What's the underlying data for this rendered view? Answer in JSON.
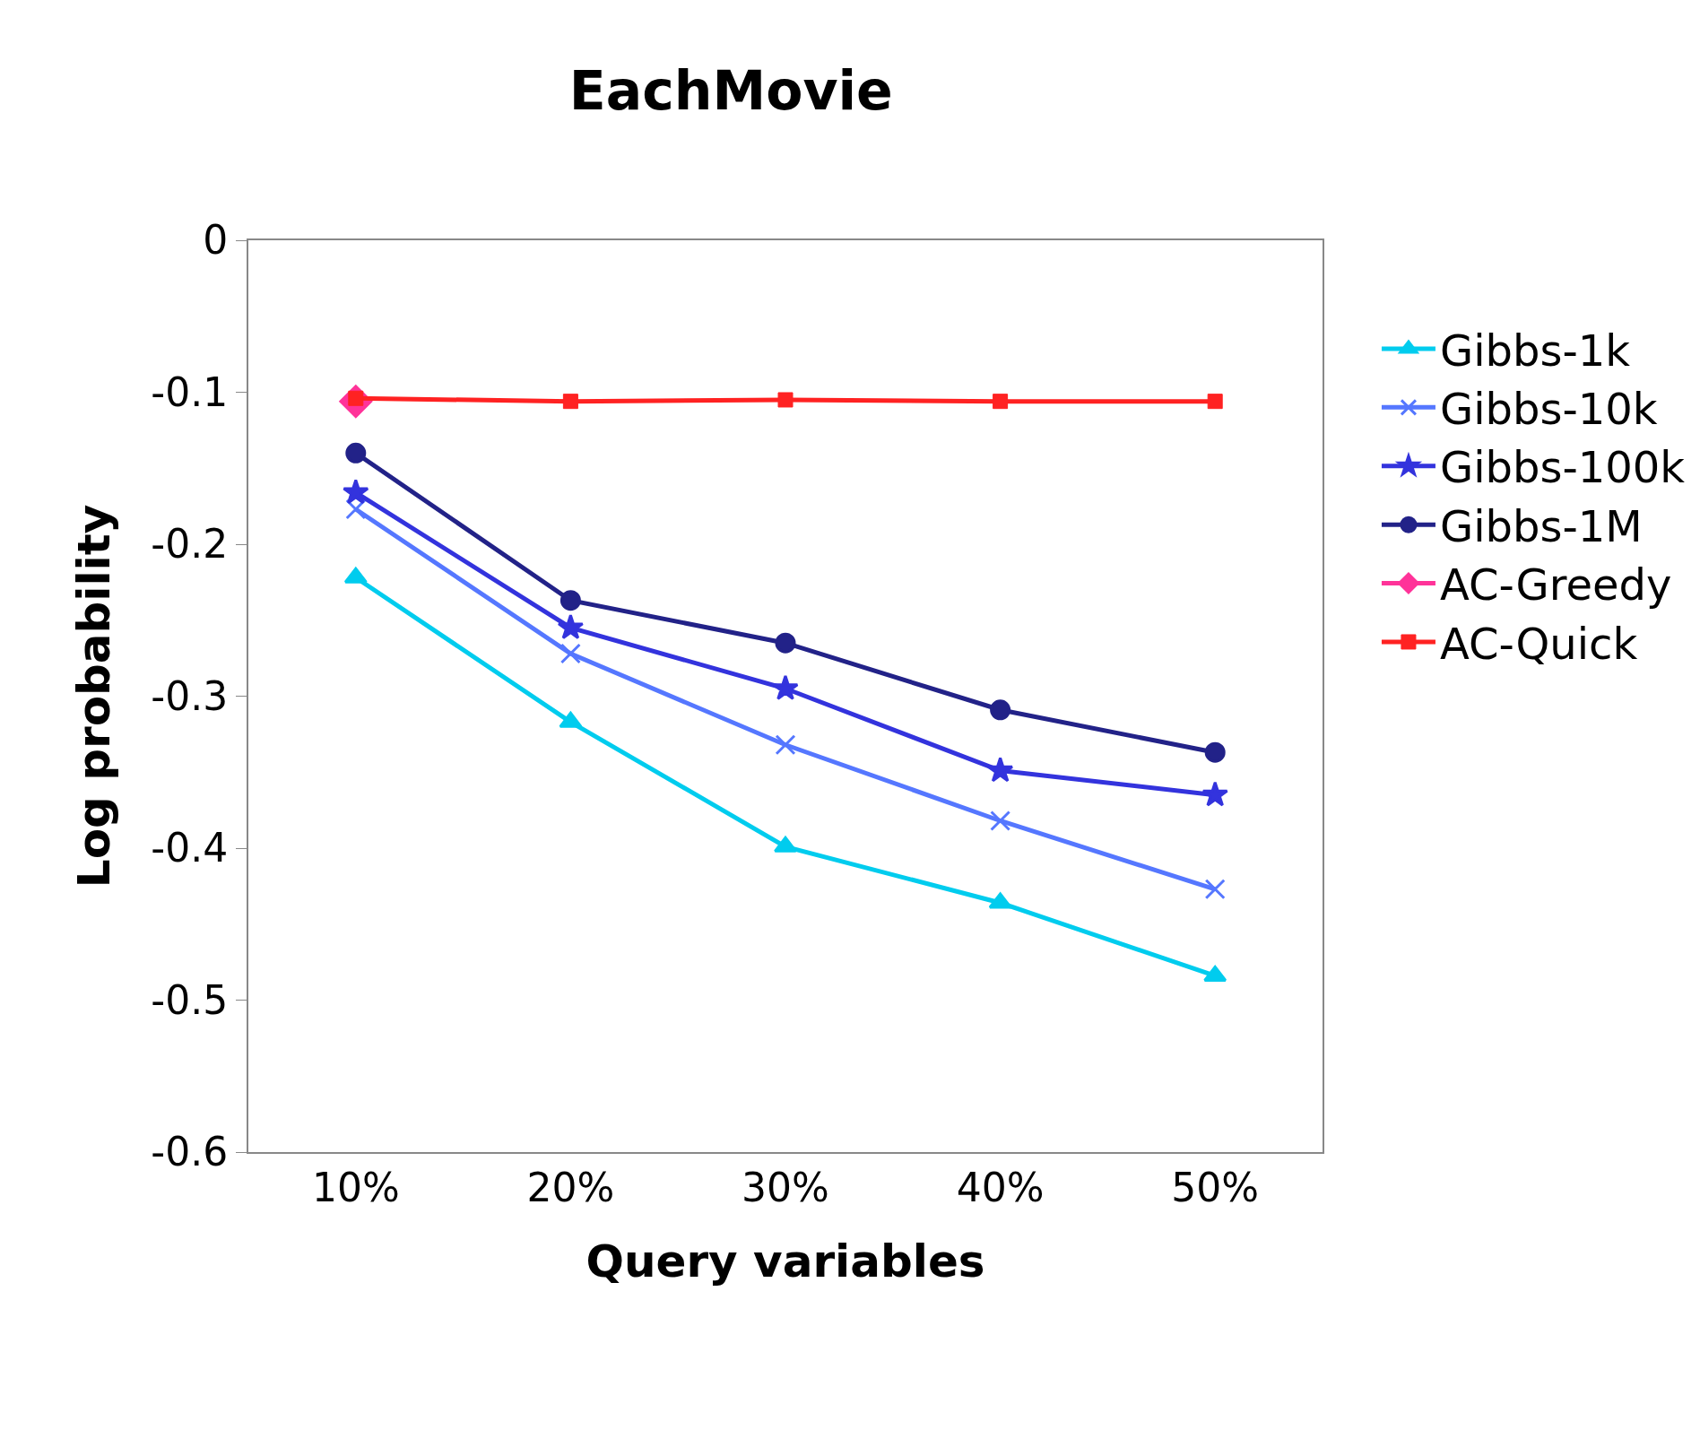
{
  "chart_data": {
    "type": "line",
    "title": "EachMovie",
    "xlabel": "Query variables",
    "ylabel": "Log probability",
    "categories": [
      "10%",
      "20%",
      "30%",
      "40%",
      "50%"
    ],
    "series": [
      {
        "name": "Gibbs-1k",
        "color": "#00ccee",
        "marker": "triangle",
        "values": [
          -0.222,
          -0.317,
          -0.399,
          -0.436,
          -0.484
        ]
      },
      {
        "name": "Gibbs-10k",
        "color": "#5577ff",
        "marker": "cross",
        "values": [
          -0.177,
          -0.272,
          -0.332,
          -0.382,
          -0.427
        ]
      },
      {
        "name": "Gibbs-100k",
        "color": "#3333dd",
        "marker": "star",
        "values": [
          -0.166,
          -0.255,
          -0.295,
          -0.349,
          -0.365
        ]
      },
      {
        "name": "Gibbs-1M",
        "color": "#222288",
        "marker": "circle",
        "values": [
          -0.14,
          -0.237,
          -0.265,
          -0.309,
          -0.337
        ]
      },
      {
        "name": "AC-Greedy",
        "color": "#ff3399",
        "marker": "diamond",
        "values": [
          -0.106,
          null,
          null,
          null,
          null
        ]
      },
      {
        "name": "AC-Quick",
        "color": "#ff2222",
        "marker": "square",
        "values": [
          -0.104,
          -0.106,
          -0.105,
          -0.106,
          -0.106
        ]
      }
    ],
    "ylim": [
      -0.6,
      0
    ],
    "yticks": [
      -0.6,
      -0.5,
      -0.4,
      -0.3,
      -0.2,
      -0.1,
      0
    ],
    "grid": false,
    "legend": "right",
    "line_style": "solid"
  }
}
